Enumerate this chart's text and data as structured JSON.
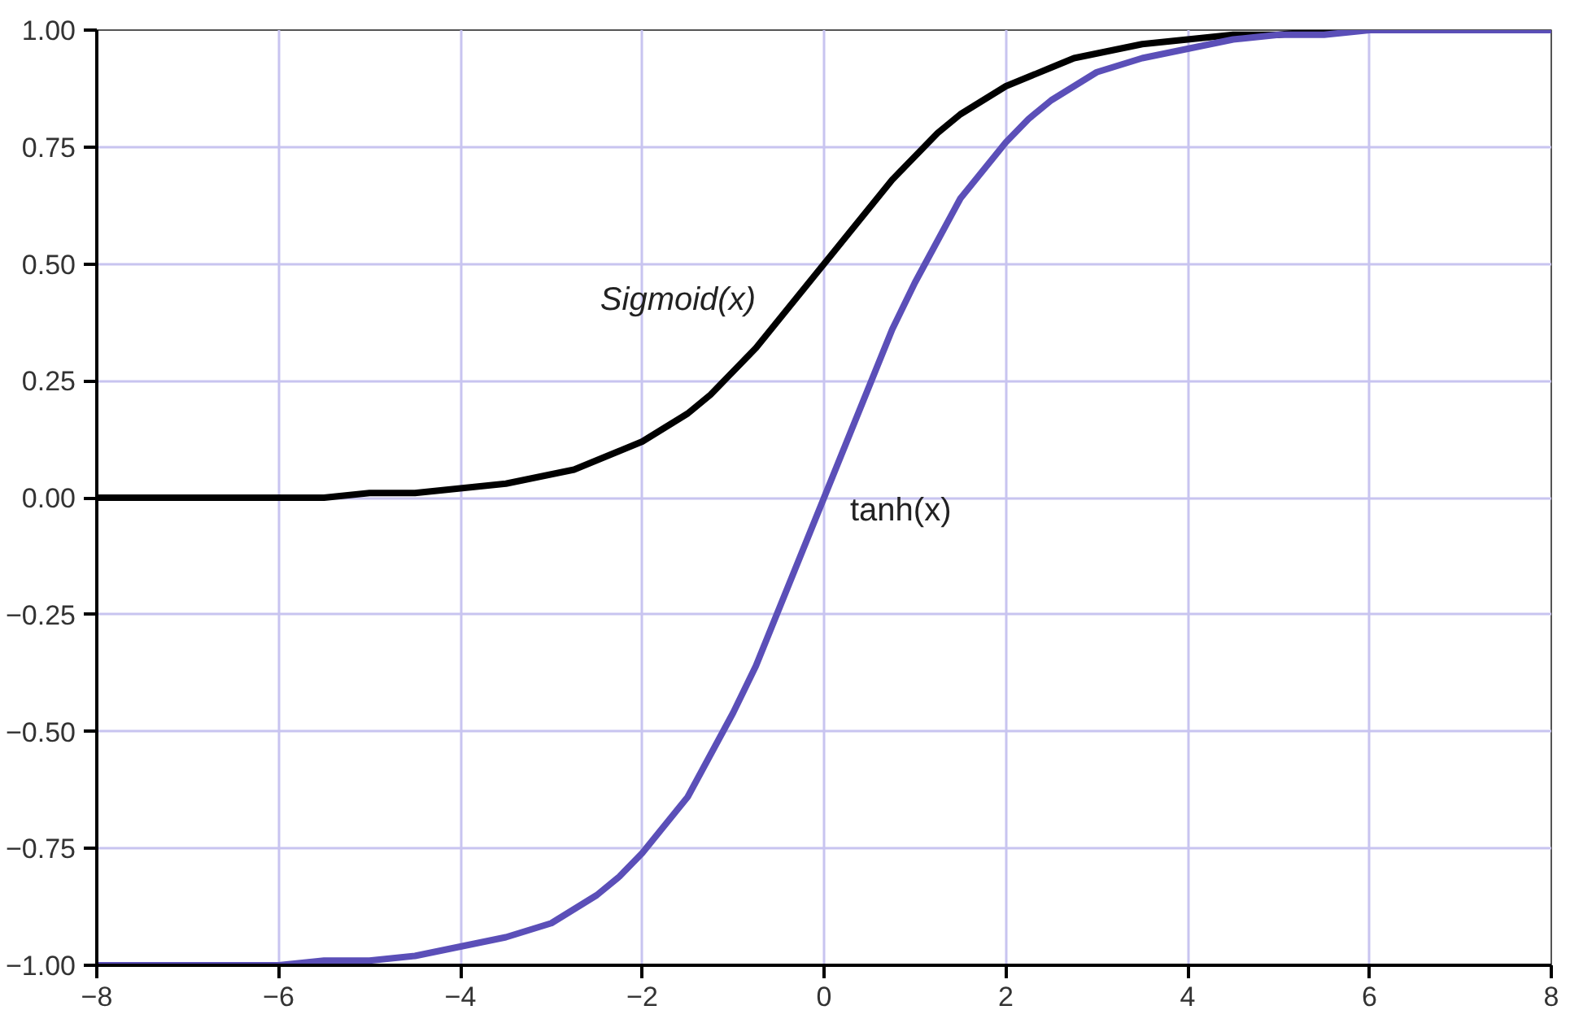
{
  "chart_data": {
    "type": "line",
    "x": [
      -8,
      -7.5,
      -7,
      -6.5,
      -6,
      -5.5,
      -5,
      -4.5,
      -4,
      -3.5,
      -3,
      -2.75,
      -2.5,
      -2.25,
      -2,
      -1.75,
      -1.5,
      -1.25,
      -1,
      -0.75,
      -0.5,
      -0.25,
      0,
      0.25,
      0.5,
      0.75,
      1,
      1.25,
      1.5,
      1.75,
      2,
      2.25,
      2.5,
      2.75,
      3,
      3.5,
      4,
      4.5,
      5,
      5.5,
      6,
      6.5,
      7,
      7.5,
      8
    ],
    "series": [
      {
        "name": "Sigmoid(x)",
        "color": "#000000",
        "values": [
          0.0,
          0.0,
          0.0,
          0.0,
          0.0,
          0.0,
          0.01,
          0.01,
          0.02,
          0.03,
          0.05,
          0.06,
          0.08,
          0.1,
          0.12,
          0.15,
          0.18,
          0.22,
          0.27,
          0.32,
          0.38,
          0.44,
          0.5,
          0.56,
          0.62,
          0.68,
          0.73,
          0.78,
          0.82,
          0.85,
          0.88,
          0.9,
          0.92,
          0.94,
          0.95,
          0.97,
          0.98,
          0.99,
          0.99,
          1.0,
          1.0,
          1.0,
          1.0,
          1.0,
          1.0
        ]
      },
      {
        "name": "tanh(x)",
        "color": "#5b4fb8",
        "values": [
          -1.0,
          -1.0,
          -1.0,
          -1.0,
          -1.0,
          -0.99,
          -0.99,
          -0.98,
          -0.96,
          -0.94,
          -0.91,
          -0.88,
          -0.85,
          -0.81,
          -0.76,
          -0.7,
          -0.64,
          -0.55,
          -0.46,
          -0.36,
          -0.24,
          -0.12,
          0.0,
          0.12,
          0.24,
          0.36,
          0.46,
          0.55,
          0.64,
          0.7,
          0.76,
          0.81,
          0.85,
          0.88,
          0.91,
          0.94,
          0.96,
          0.98,
          0.99,
          0.99,
          1.0,
          1.0,
          1.0,
          1.0,
          1.0
        ]
      }
    ],
    "xlim": [
      -8,
      8
    ],
    "xticks": [
      {
        "value": -8,
        "label": "−8"
      },
      {
        "value": -6,
        "label": "−6"
      },
      {
        "value": -4,
        "label": "−4"
      },
      {
        "value": -2,
        "label": "−2"
      },
      0,
      2,
      4,
      6,
      8
    ],
    "ylim": [
      -1,
      1
    ],
    "yticks": [
      {
        "value": -1,
        "label": "−1.00"
      },
      {
        "value": -0.75,
        "label": "−0.75"
      },
      {
        "value": -0.5,
        "label": "−0.50"
      },
      {
        "value": -0.25,
        "label": "−0.25"
      },
      {
        "value": 0,
        "label": "0.00"
      },
      0.25,
      {
        "value": 0.5,
        "label": "0.50"
      },
      0.75,
      {
        "value": 1,
        "label": "1.00"
      }
    ],
    "grid": true,
    "marker": "none",
    "line_style": "solid"
  }
}
